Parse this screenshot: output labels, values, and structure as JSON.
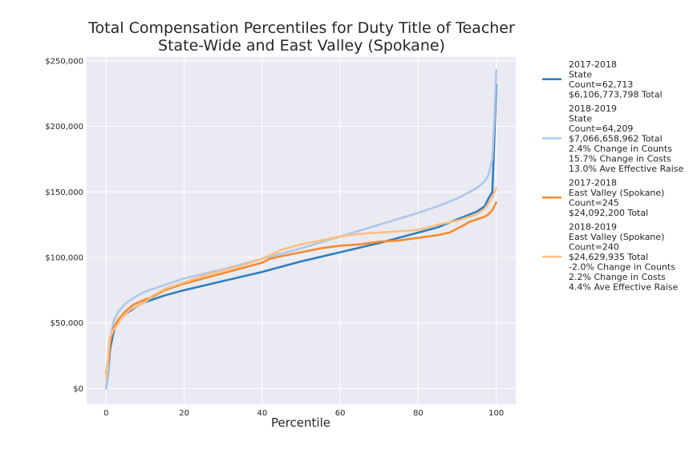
{
  "chart_data": {
    "type": "line",
    "title": [
      "Total Compensation Percentiles for Duty Title of Teacher",
      "State-Wide and East Valley (Spokane)"
    ],
    "xlabel": "Percentile",
    "ylabel": "",
    "xlim": [
      -5,
      105
    ],
    "ylim": [
      -12000,
      253000
    ],
    "x_ticks": [
      0,
      20,
      40,
      60,
      80,
      100
    ],
    "x_tick_labels": [
      "0",
      "20",
      "40",
      "60",
      "80",
      "100"
    ],
    "y_ticks": [
      0,
      50000,
      100000,
      150000,
      200000,
      250000
    ],
    "y_tick_labels": [
      "$0",
      "$50,000",
      "$100,000",
      "$150,000",
      "$200,000",
      "$250,000"
    ],
    "grid": true,
    "legend_position": "outside-right",
    "series": [
      {
        "name": "2017-2018\nState\nCount=62,713\n$6,106,773,798 Total",
        "color": "#2f7fbf",
        "points": [
          [
            0,
            0
          ],
          [
            0.5,
            12000
          ],
          [
            1,
            30000
          ],
          [
            2,
            44000
          ],
          [
            3,
            51000
          ],
          [
            5,
            57000
          ],
          [
            8,
            63000
          ],
          [
            10,
            66000
          ],
          [
            15,
            71000
          ],
          [
            20,
            75000
          ],
          [
            30,
            82000
          ],
          [
            40,
            89000
          ],
          [
            50,
            97000
          ],
          [
            60,
            104000
          ],
          [
            70,
            111000
          ],
          [
            80,
            119000
          ],
          [
            85,
            123000
          ],
          [
            90,
            129000
          ],
          [
            95,
            135000
          ],
          [
            97,
            139000
          ],
          [
            98,
            145000
          ],
          [
            99,
            150000
          ],
          [
            99.5,
            190000
          ],
          [
            100,
            232000
          ]
        ]
      },
      {
        "name": "2018-2019\nState\nCount=64,209\n$7,066,658,962 Total\n2.4% Change in Counts\n15.7% Change in Costs\n13.0% Ave Effective Raise",
        "color": "#aec7e8",
        "points": [
          [
            0,
            0
          ],
          [
            0.5,
            15000
          ],
          [
            1,
            38000
          ],
          [
            2,
            52000
          ],
          [
            3,
            58000
          ],
          [
            5,
            65000
          ],
          [
            8,
            71000
          ],
          [
            10,
            74000
          ],
          [
            15,
            79000
          ],
          [
            20,
            84000
          ],
          [
            30,
            91000
          ],
          [
            40,
            99000
          ],
          [
            50,
            107000
          ],
          [
            60,
            116000
          ],
          [
            70,
            125000
          ],
          [
            80,
            134000
          ],
          [
            85,
            139000
          ],
          [
            90,
            145000
          ],
          [
            95,
            153000
          ],
          [
            97,
            158000
          ],
          [
            98,
            163000
          ],
          [
            99,
            175000
          ],
          [
            99.5,
            205000
          ],
          [
            100,
            243000
          ]
        ]
      },
      {
        "name": "2017-2018\nEast Valley (Spokane)\nCount=245\n$24,092,200 Total",
        "color": "#f58a2e",
        "points": [
          [
            0,
            12000
          ],
          [
            0.5,
            20000
          ],
          [
            1,
            35000
          ],
          [
            2,
            47000
          ],
          [
            3,
            52000
          ],
          [
            5,
            59000
          ],
          [
            7,
            64000
          ],
          [
            10,
            68000
          ],
          [
            12,
            70000
          ],
          [
            15,
            75000
          ],
          [
            20,
            80000
          ],
          [
            25,
            84000
          ],
          [
            30,
            88000
          ],
          [
            35,
            92000
          ],
          [
            40,
            96000
          ],
          [
            42,
            99000
          ],
          [
            45,
            101000
          ],
          [
            50,
            104000
          ],
          [
            55,
            107000
          ],
          [
            60,
            109000
          ],
          [
            65,
            110000
          ],
          [
            70,
            112000
          ],
          [
            75,
            113000
          ],
          [
            80,
            115000
          ],
          [
            85,
            117000
          ],
          [
            88,
            119000
          ],
          [
            90,
            122000
          ],
          [
            92,
            125000
          ],
          [
            93,
            127000
          ],
          [
            95,
            129000
          ],
          [
            97,
            131000
          ],
          [
            98,
            133000
          ],
          [
            99,
            136000
          ],
          [
            100,
            142000
          ]
        ]
      },
      {
        "name": "2018-2019\nEast Valley (Spokane)\nCount=240\n$24,629,935 Total\n-2.0% Change in Counts\n2.2% Change in Costs\n4.4% Ave Effective Raise",
        "color": "#fdbf80",
        "points": [
          [
            0,
            8000
          ],
          [
            0.5,
            25000
          ],
          [
            1,
            40000
          ],
          [
            2,
            45000
          ],
          [
            3,
            49000
          ],
          [
            4,
            54000
          ],
          [
            6,
            60000
          ],
          [
            10,
            66000
          ],
          [
            12,
            71000
          ],
          [
            15,
            76000
          ],
          [
            20,
            81000
          ],
          [
            25,
            86000
          ],
          [
            30,
            90000
          ],
          [
            35,
            94000
          ],
          [
            40,
            99000
          ],
          [
            43,
            103000
          ],
          [
            45,
            106000
          ],
          [
            50,
            110000
          ],
          [
            55,
            113000
          ],
          [
            60,
            116000
          ],
          [
            65,
            118000
          ],
          [
            70,
            119000
          ],
          [
            75,
            120000
          ],
          [
            80,
            121000
          ],
          [
            85,
            125000
          ],
          [
            90,
            128000
          ],
          [
            92,
            130000
          ],
          [
            95,
            133000
          ],
          [
            97,
            137000
          ],
          [
            98,
            141000
          ],
          [
            99,
            146000
          ],
          [
            100,
            153000
          ]
        ]
      }
    ]
  }
}
